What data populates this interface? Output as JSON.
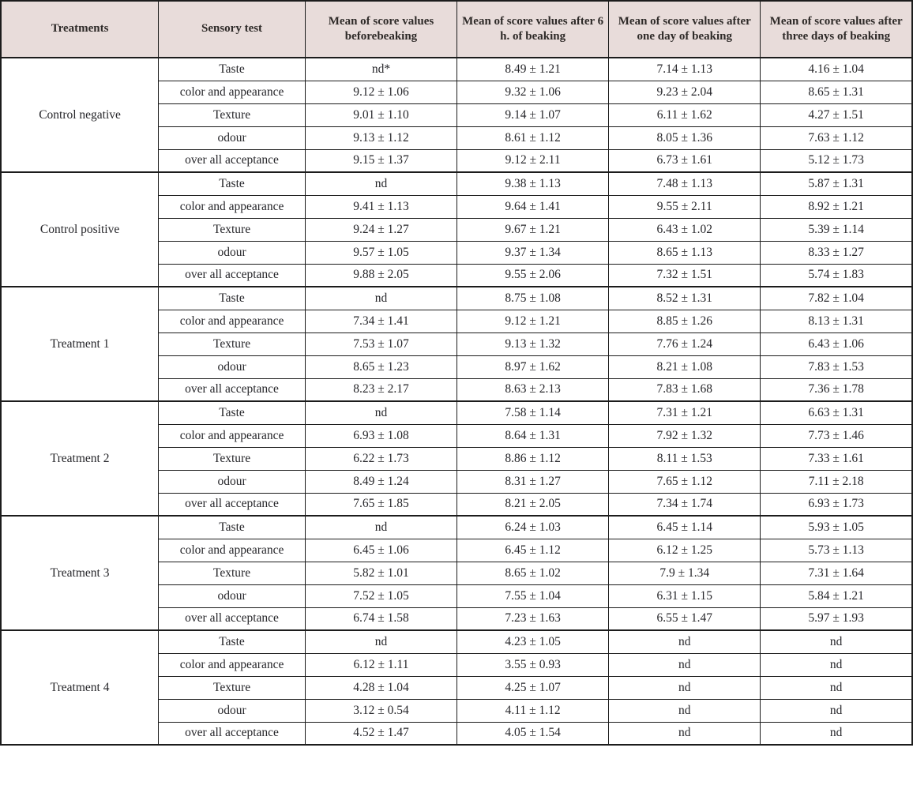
{
  "colors": {
    "header_bg": "#e8dcda",
    "border": "#1c1c1c",
    "header_text": "#2e2a28",
    "body_text": "#26262a"
  },
  "table": {
    "headers": [
      "Treatments",
      "Sensory test",
      "Mean of score values beforebeaking",
      "Mean of score values after 6 h. of beaking",
      "Mean of score values after one day of beaking",
      "Mean of score values after three days of beaking"
    ],
    "groups": [
      {
        "treatment": "Control negative",
        "rows": [
          {
            "test": "Taste",
            "values": [
              "nd*",
              "8.49 ± 1.21",
              "7.14 ± 1.13",
              "4.16 ± 1.04"
            ]
          },
          {
            "test": "color and appearance",
            "values": [
              "9.12 ± 1.06",
              "9.32 ± 1.06",
              "9.23 ± 2.04",
              "8.65 ± 1.31"
            ]
          },
          {
            "test": "Texture",
            "values": [
              "9.01 ± 1.10",
              "9.14 ± 1.07",
              "6.11 ± 1.62",
              "4.27 ± 1.51"
            ]
          },
          {
            "test": "odour",
            "values": [
              "9.13 ± 1.12",
              "8.61 ± 1.12",
              "8.05 ± 1.36",
              "7.63 ± 1.12"
            ]
          },
          {
            "test": "over all acceptance",
            "values": [
              "9.15 ± 1.37",
              "9.12 ± 2.11",
              "6.73 ± 1.61",
              "5.12 ± 1.73"
            ]
          }
        ]
      },
      {
        "treatment": "Control positive",
        "rows": [
          {
            "test": "Taste",
            "values": [
              "nd",
              "9.38 ± 1.13",
              "7.48 ± 1.13",
              "5.87 ± 1.31"
            ]
          },
          {
            "test": "color and appearance",
            "values": [
              "9.41 ± 1.13",
              "9.64 ± 1.41",
              "9.55 ± 2.11",
              "8.92 ± 1.21"
            ]
          },
          {
            "test": "Texture",
            "values": [
              "9.24 ± 1.27",
              "9.67 ± 1.21",
              "6.43 ± 1.02",
              "5.39 ± 1.14"
            ]
          },
          {
            "test": "odour",
            "values": [
              "9.57 ± 1.05",
              "9.37 ± 1.34",
              "8.65 ± 1.13",
              "8.33 ± 1.27"
            ]
          },
          {
            "test": "over all acceptance",
            "values": [
              "9.88 ± 2.05",
              "9.55 ± 2.06",
              "7.32 ± 1.51",
              "5.74 ± 1.83"
            ]
          }
        ]
      },
      {
        "treatment": "Treatment 1",
        "rows": [
          {
            "test": "Taste",
            "values": [
              "nd",
              "8.75 ± 1.08",
              "8.52 ± 1.31",
              "7.82 ± 1.04"
            ]
          },
          {
            "test": "color and appearance",
            "values": [
              "7.34 ± 1.41",
              "9.12 ± 1.21",
              "8.85 ± 1.26",
              "8.13 ± 1.31"
            ]
          },
          {
            "test": "Texture",
            "values": [
              "7.53 ± 1.07",
              "9.13 ± 1.32",
              "7.76 ± 1.24",
              "6.43 ± 1.06"
            ]
          },
          {
            "test": "odour",
            "values": [
              "8.65 ± 1.23",
              "8.97 ± 1.62",
              "8.21 ± 1.08",
              "7.83 ± 1.53"
            ]
          },
          {
            "test": "over all acceptance",
            "values": [
              "8.23 ± 2.17",
              "8.63 ± 2.13",
              "7.83 ± 1.68",
              "7.36 ± 1.78"
            ]
          }
        ]
      },
      {
        "treatment": "Treatment 2",
        "rows": [
          {
            "test": "Taste",
            "values": [
              "nd",
              "7.58 ± 1.14",
              "7.31 ± 1.21",
              "6.63 ± 1.31"
            ]
          },
          {
            "test": "color and appearance",
            "values": [
              "6.93 ± 1.08",
              "8.64 ± 1.31",
              "7.92 ± 1.32",
              "7.73 ± 1.46"
            ]
          },
          {
            "test": "Texture",
            "values": [
              "6.22 ± 1.73",
              "8.86 ± 1.12",
              "8.11 ± 1.53",
              "7.33 ± 1.61"
            ]
          },
          {
            "test": "odour",
            "values": [
              "8.49 ± 1.24",
              "8.31 ± 1.27",
              "7.65 ± 1.12",
              "7.11 ± 2.18"
            ]
          },
          {
            "test": "over all acceptance",
            "values": [
              "7.65 ± 1.85",
              "8.21 ± 2.05",
              "7.34 ± 1.74",
              "6.93 ± 1.73"
            ]
          }
        ]
      },
      {
        "treatment": "Treatment 3",
        "rows": [
          {
            "test": "Taste",
            "values": [
              "nd",
              "6.24 ± 1.03",
              "6.45 ± 1.14",
              "5.93 ± 1.05"
            ]
          },
          {
            "test": "color and appearance",
            "values": [
              "6.45 ± 1.06",
              "6.45 ± 1.12",
              "6.12 ± 1.25",
              "5.73 ± 1.13"
            ]
          },
          {
            "test": "Texture",
            "values": [
              "5.82 ± 1.01",
              "8.65 ± 1.02",
              "7.9 ± 1.34",
              "7.31 ± 1.64"
            ]
          },
          {
            "test": "odour",
            "values": [
              "7.52 ± 1.05",
              "7.55 ± 1.04",
              "6.31 ± 1.15",
              "5.84 ± 1.21"
            ]
          },
          {
            "test": "over all acceptance",
            "values": [
              "6.74 ± 1.58",
              "7.23 ± 1.63",
              "6.55 ± 1.47",
              "5.97 ± 1.93"
            ]
          }
        ]
      },
      {
        "treatment": "Treatment 4",
        "rows": [
          {
            "test": "Taste",
            "values": [
              "nd",
              "4.23 ± 1.05",
              "nd",
              "nd"
            ]
          },
          {
            "test": "color and appearance",
            "values": [
              "6.12 ± 1.11",
              "3.55 ± 0.93",
              "nd",
              "nd"
            ]
          },
          {
            "test": "Texture",
            "values": [
              "4.28 ± 1.04",
              "4.25 ± 1.07",
              "nd",
              "nd"
            ]
          },
          {
            "test": "odour",
            "values": [
              "3.12 ± 0.54",
              "4.11 ± 1.12",
              "nd",
              "nd"
            ]
          },
          {
            "test": "over all acceptance",
            "values": [
              "4.52 ± 1.47",
              "4.05 ± 1.54",
              "nd",
              "nd"
            ]
          }
        ]
      }
    ]
  }
}
